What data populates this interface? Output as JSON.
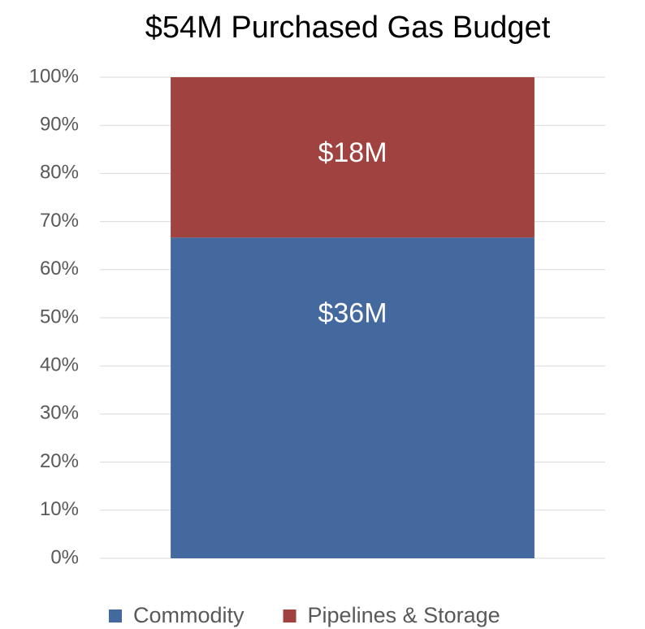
{
  "chart_data": {
    "type": "stacked_bar",
    "title": "$54M Purchased Gas Budget",
    "categories": [
      null
    ],
    "series": [
      {
        "name": "Commodity",
        "color": "#43699f",
        "values": [
          66.67
        ],
        "value_labels": [
          "$36M"
        ]
      },
      {
        "name": "Pipelines & Storage",
        "color": "#a04340",
        "values": [
          33.33
        ],
        "value_labels": [
          "$18M"
        ]
      }
    ],
    "ylim": [
      0,
      100
    ],
    "yticks": [
      {
        "value": 0,
        "label": "0%"
      },
      {
        "value": 10,
        "label": "10%"
      },
      {
        "value": 20,
        "label": "20%"
      },
      {
        "value": 30,
        "label": "30%"
      },
      {
        "value": 40,
        "label": "40%"
      },
      {
        "value": 50,
        "label": "50%"
      },
      {
        "value": 60,
        "label": "60%"
      },
      {
        "value": 70,
        "label": "70%"
      },
      {
        "value": 80,
        "label": "80%"
      },
      {
        "value": 90,
        "label": "90%"
      },
      {
        "value": 100,
        "label": "100%"
      }
    ],
    "grid": true,
    "legend": "bottom"
  }
}
